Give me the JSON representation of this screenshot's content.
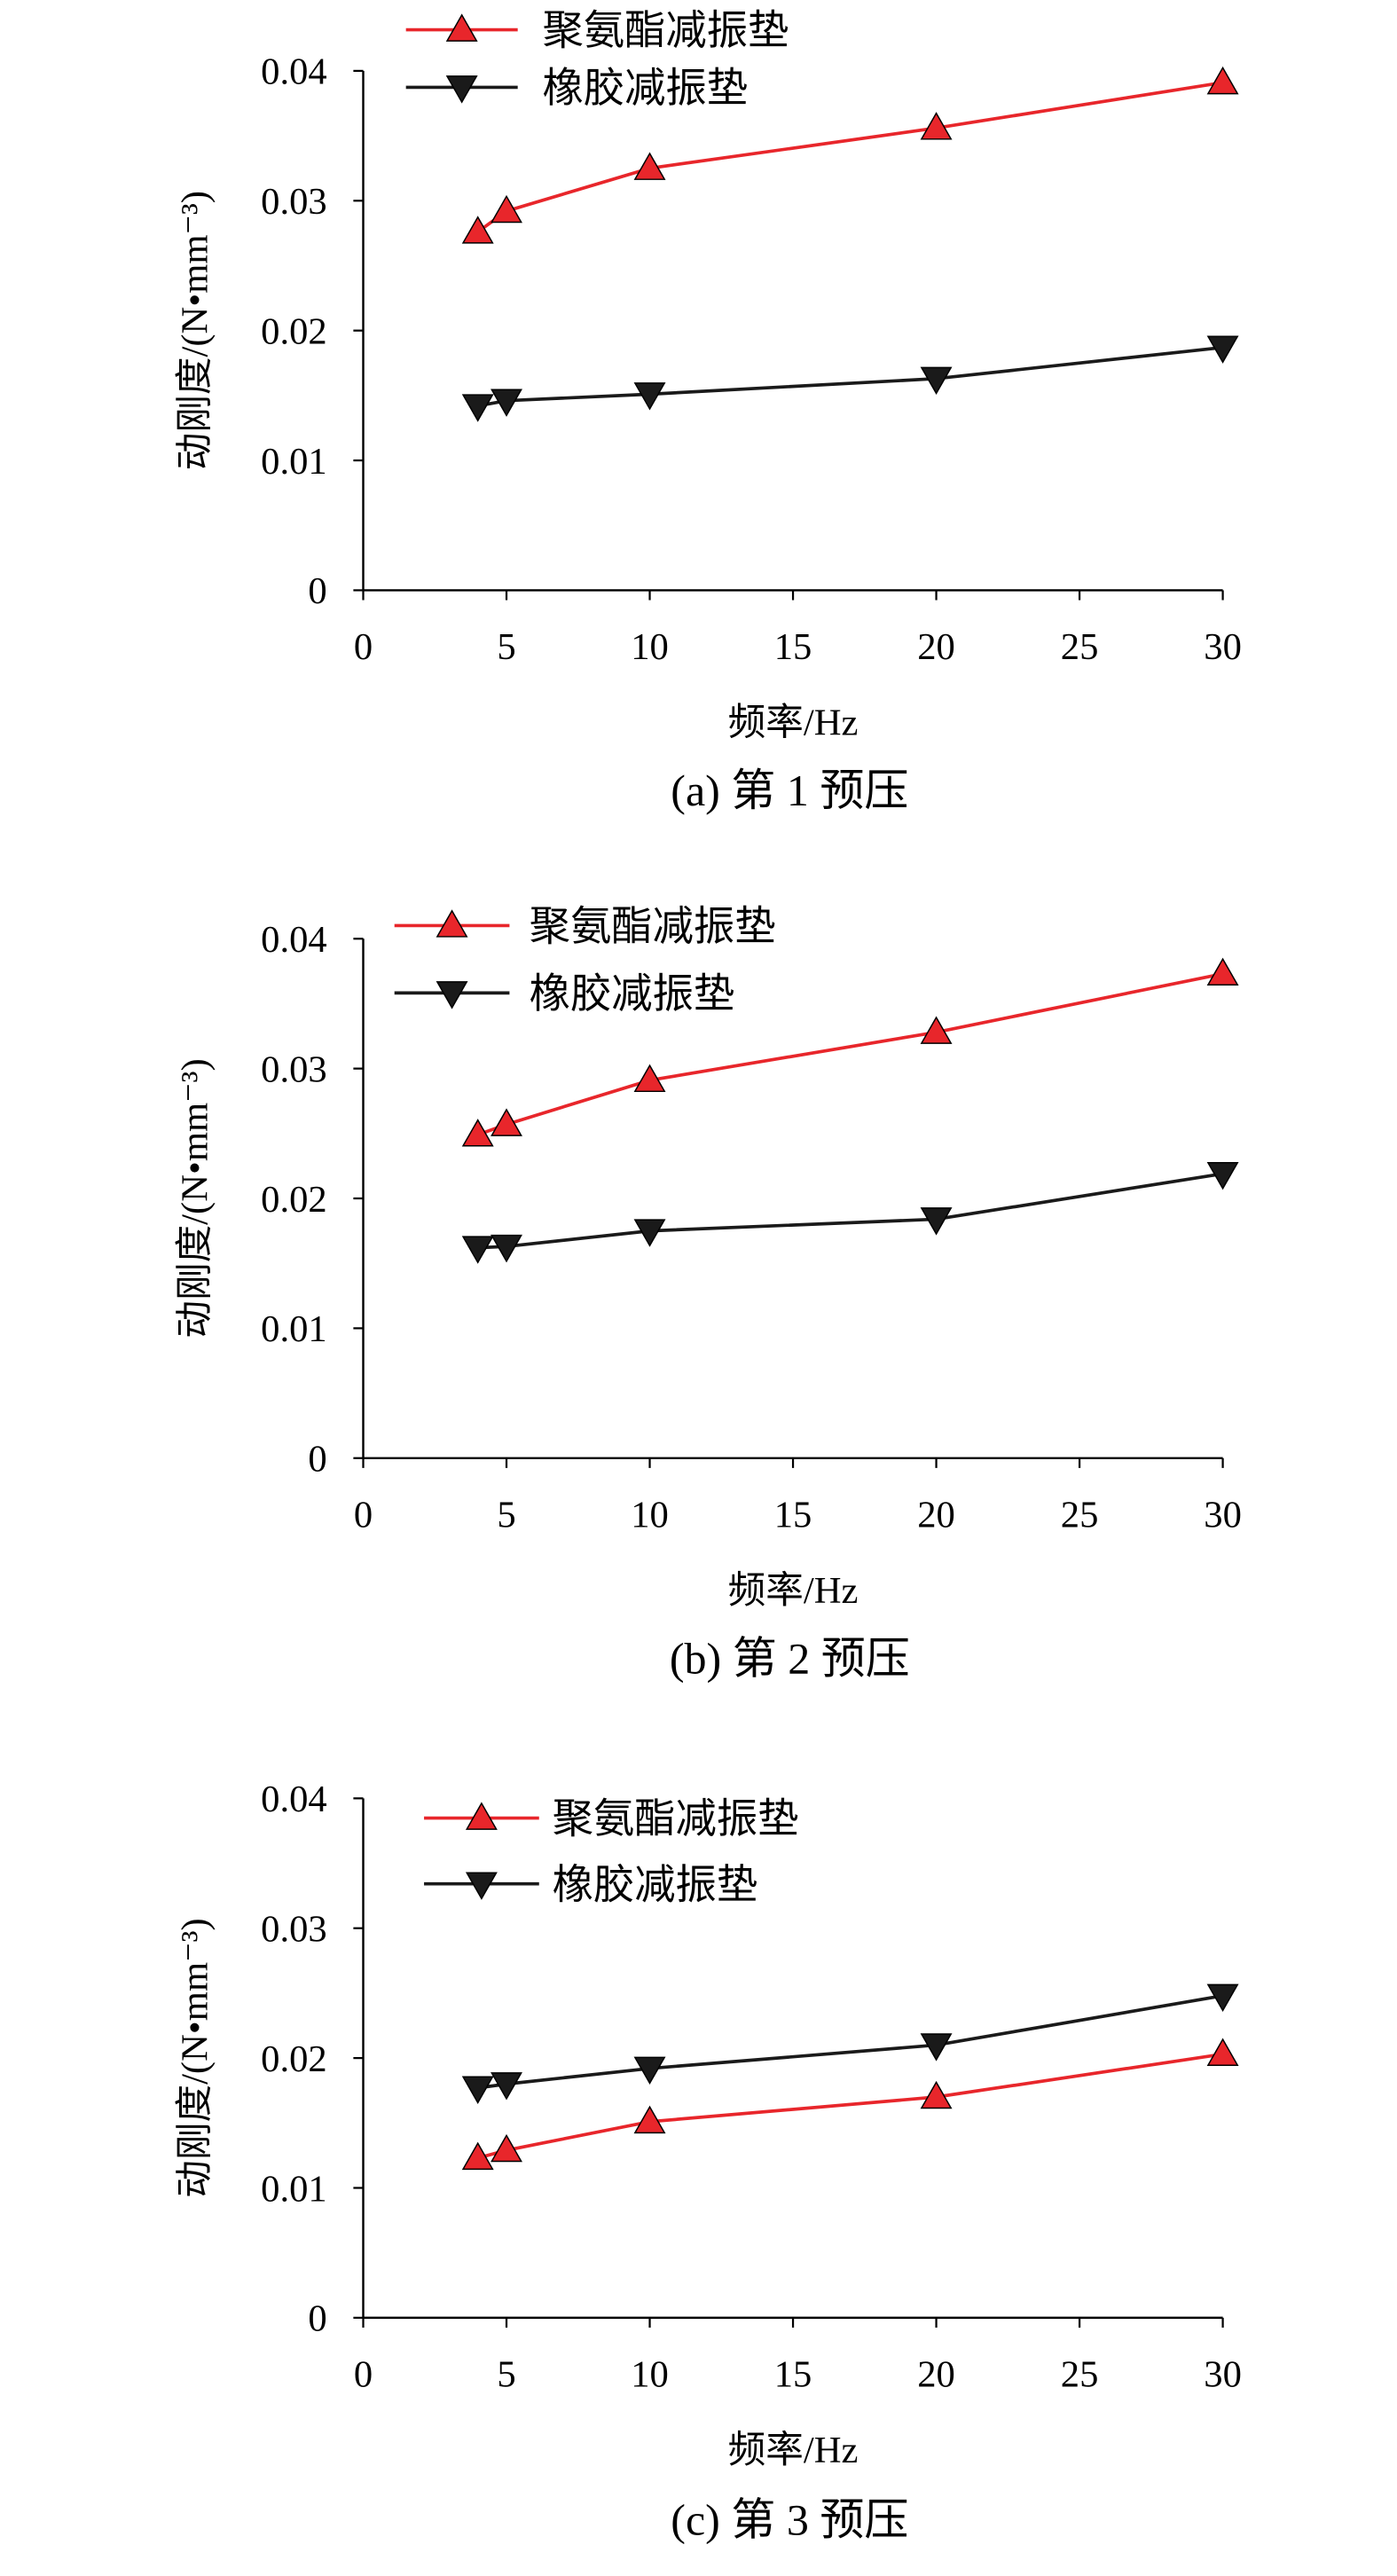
{
  "colors": {
    "polyurethane": "#e8262b",
    "rubber": "#1a1a1a",
    "axis": "#000000"
  },
  "chart_data": [
    {
      "type": "line",
      "caption": "(a) 第 1 预压",
      "xlabel": "频率/Hz",
      "ylabel": "动刚度/(N•mm⁻³)",
      "xlim": [
        0,
        30
      ],
      "ylim": [
        0,
        0.04
      ],
      "xticks": [
        "0",
        "5",
        "10",
        "15",
        "20",
        "25",
        "30"
      ],
      "yticks": [
        "0",
        "0.01",
        "0.02",
        "0.03",
        "0.04"
      ],
      "x": [
        4,
        5,
        10,
        20,
        30
      ],
      "legend_position": "top-left",
      "series": [
        {
          "name": "聚氨酯减振垫",
          "marker": "triangle-up",
          "values": [
            0.0276,
            0.0292,
            0.0325,
            0.0356,
            0.0391
          ]
        },
        {
          "name": "橡胶减振垫",
          "marker": "triangle-down",
          "values": [
            0.0142,
            0.0146,
            0.0151,
            0.0163,
            0.0187
          ]
        }
      ]
    },
    {
      "type": "line",
      "caption": "(b) 第 2 预压",
      "xlabel": "频率/Hz",
      "ylabel": "动刚度/(N•mm⁻³)",
      "xlim": [
        0,
        30
      ],
      "ylim": [
        0,
        0.04
      ],
      "xticks": [
        "0",
        "5",
        "10",
        "15",
        "20",
        "25",
        "30"
      ],
      "yticks": [
        "0",
        "0.01",
        "0.02",
        "0.03",
        "0.04"
      ],
      "x": [
        4,
        5,
        10,
        20,
        30
      ],
      "legend_position": "top-left",
      "series": [
        {
          "name": "聚氨酯减振垫",
          "marker": "triangle-up",
          "values": [
            0.0249,
            0.0257,
            0.0291,
            0.0328,
            0.0373
          ]
        },
        {
          "name": "橡胶减振垫",
          "marker": "triangle-down",
          "values": [
            0.0162,
            0.0163,
            0.0175,
            0.0184,
            0.0219
          ]
        }
      ]
    },
    {
      "type": "line",
      "caption": "(c) 第 3 预压",
      "xlabel": "频率/Hz",
      "ylabel": "动刚度/(N•mm⁻³)",
      "xlim": [
        0,
        30
      ],
      "ylim": [
        0,
        0.04
      ],
      "xticks": [
        "0",
        "5",
        "10",
        "15",
        "20",
        "25",
        "30"
      ],
      "yticks": [
        "0",
        "0.01",
        "0.02",
        "0.03",
        "0.04"
      ],
      "x": [
        4,
        5,
        10,
        20,
        30
      ],
      "legend_position": "top-left",
      "series": [
        {
          "name": "聚氨酯减振垫",
          "marker": "triangle-up",
          "values": [
            0.0123,
            0.0129,
            0.0151,
            0.017,
            0.0203
          ]
        },
        {
          "name": "橡胶减振垫",
          "marker": "triangle-down",
          "values": [
            0.0177,
            0.018,
            0.0192,
            0.021,
            0.0248
          ]
        }
      ]
    }
  ]
}
